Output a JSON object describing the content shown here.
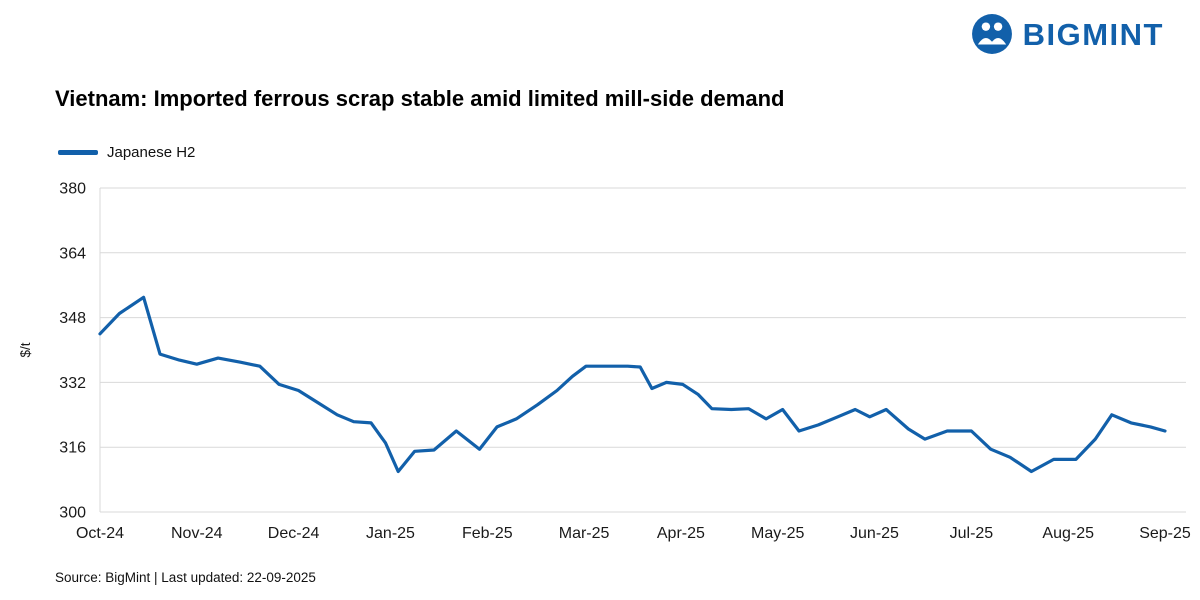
{
  "brand": {
    "name": "BIGMINT",
    "color": "#1260aa"
  },
  "title": "Vietnam: Imported ferrous scrap stable amid limited mill-side demand",
  "footer": "Source: BigMint | Last updated: 22-09-2025",
  "chart_data": {
    "type": "line",
    "title": "Vietnam: Imported ferrous scrap stable amid limited mill-side demand",
    "xlabel": "",
    "ylabel": "$/t",
    "ylim": [
      300,
      380
    ],
    "yticks": [
      300,
      316,
      332,
      348,
      364,
      380
    ],
    "x_tick_labels": [
      "Oct-24",
      "Nov-24",
      "Dec-24",
      "Jan-25",
      "Feb-25",
      "Mar-25",
      "Apr-25",
      "May-25",
      "Jun-25",
      "Jul-25",
      "Aug-25",
      "Sep-25"
    ],
    "grid": "horizontal",
    "grid_color": "#d9d9d9",
    "text_color": "#1a1a1a",
    "legend_position": "top-left",
    "series": [
      {
        "name": "Japanese H2",
        "color": "#1260aa",
        "points": [
          [
            0.0,
            344
          ],
          [
            0.2,
            349
          ],
          [
            0.45,
            353
          ],
          [
            0.62,
            339
          ],
          [
            0.82,
            337.5
          ],
          [
            1.0,
            336.5
          ],
          [
            1.22,
            338
          ],
          [
            1.45,
            337
          ],
          [
            1.65,
            336
          ],
          [
            1.85,
            331.5
          ],
          [
            2.05,
            330
          ],
          [
            2.25,
            327
          ],
          [
            2.45,
            324
          ],
          [
            2.62,
            322.3
          ],
          [
            2.8,
            322
          ],
          [
            2.95,
            317
          ],
          [
            3.08,
            310
          ],
          [
            3.25,
            315
          ],
          [
            3.45,
            315.3
          ],
          [
            3.68,
            320
          ],
          [
            3.92,
            315.5
          ],
          [
            4.1,
            321
          ],
          [
            4.3,
            323
          ],
          [
            4.52,
            326.5
          ],
          [
            4.72,
            330
          ],
          [
            4.88,
            333.5
          ],
          [
            5.02,
            336
          ],
          [
            5.22,
            336
          ],
          [
            5.45,
            336
          ],
          [
            5.58,
            335.8
          ],
          [
            5.7,
            330.5
          ],
          [
            5.85,
            332
          ],
          [
            6.02,
            331.5
          ],
          [
            6.18,
            329
          ],
          [
            6.32,
            325.5
          ],
          [
            6.52,
            325.3
          ],
          [
            6.7,
            325.5
          ],
          [
            6.88,
            323
          ],
          [
            7.05,
            325.3
          ],
          [
            7.22,
            320
          ],
          [
            7.42,
            321.5
          ],
          [
            7.62,
            323.5
          ],
          [
            7.8,
            325.3
          ],
          [
            7.95,
            323.5
          ],
          [
            8.12,
            325.3
          ],
          [
            8.35,
            320.5
          ],
          [
            8.52,
            318
          ],
          [
            8.75,
            320
          ],
          [
            9.0,
            320
          ],
          [
            9.2,
            315.5
          ],
          [
            9.4,
            313.5
          ],
          [
            9.62,
            310
          ],
          [
            9.85,
            313
          ],
          [
            10.08,
            313
          ],
          [
            10.28,
            318
          ],
          [
            10.45,
            324
          ],
          [
            10.65,
            322
          ],
          [
            10.85,
            321
          ],
          [
            11.0,
            320
          ]
        ]
      }
    ]
  }
}
